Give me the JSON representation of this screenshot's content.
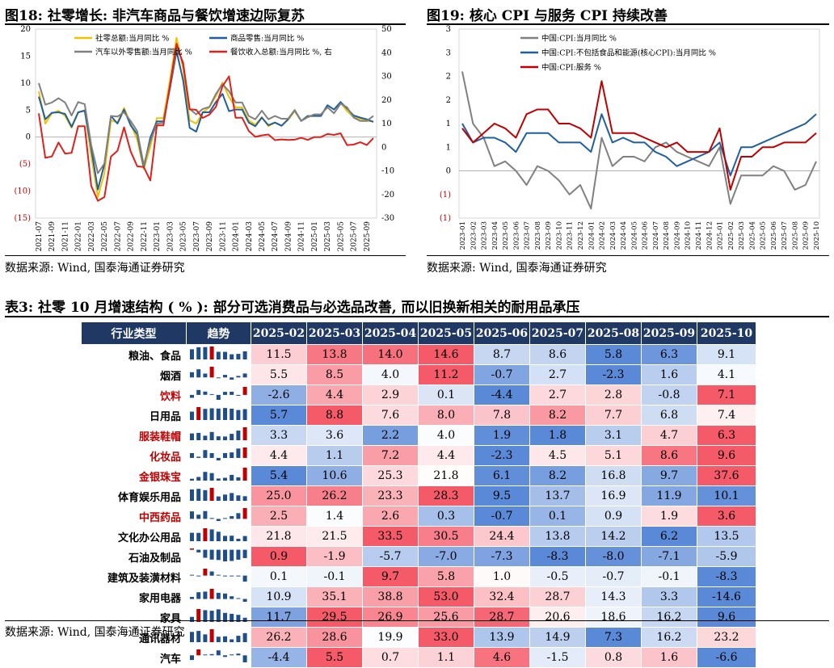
{
  "fig18": {
    "title": "图18: 社零增长: 非汽车商品与餐饮增速边际复苏",
    "source": "数据来源: Wind, 国泰海通证券研究"
  },
  "fig19": {
    "title": "图19: 核心 CPI 与服务 CPI 持续改善",
    "source": "数据来源: Wind, 国泰海通证券研究"
  },
  "table3": {
    "title": "表3: 社零 10 月增速结构 ( % ): 部分可选消费品与必选品改善, 而以旧换新相关的耐用品承压",
    "source": "数据来源: Wind, 国泰海通证券研究",
    "headers": [
      "行业类型",
      "趋势",
      "2025-02",
      "2025-03",
      "2025-04",
      "2025-05",
      "2025-06",
      "2025-07",
      "2025-08",
      "2025-09",
      "2025-10"
    ],
    "rows": [
      {
        "name": "粮油、食品",
        "red": false,
        "values": [
          "11.5",
          "13.8",
          "14.0",
          "14.6",
          "8.7",
          "8.6",
          "5.8",
          "6.3",
          "9.1"
        ]
      },
      {
        "name": "烟酒",
        "red": false,
        "values": [
          "5.5",
          "8.5",
          "4.0",
          "11.2",
          "-0.7",
          "2.7",
          "-2.3",
          "1.6",
          "4.1"
        ]
      },
      {
        "name": "饮料",
        "red": true,
        "values": [
          "-2.6",
          "4.4",
          "2.9",
          "0.1",
          "-4.4",
          "2.7",
          "2.8",
          "-0.8",
          "7.1"
        ]
      },
      {
        "name": "日用品",
        "red": false,
        "values": [
          "5.7",
          "8.8",
          "7.6",
          "8.0",
          "7.8",
          "8.2",
          "7.7",
          "6.8",
          "7.4"
        ]
      },
      {
        "name": "服装鞋帽",
        "red": true,
        "values": [
          "3.3",
          "3.6",
          "2.2",
          "4.0",
          "1.9",
          "1.8",
          "3.1",
          "4.7",
          "6.3"
        ]
      },
      {
        "name": "化妆品",
        "red": true,
        "values": [
          "4.4",
          "1.1",
          "7.2",
          "4.4",
          "-2.3",
          "4.5",
          "5.1",
          "8.6",
          "9.6"
        ]
      },
      {
        "name": "金银珠宝",
        "red": true,
        "values": [
          "5.4",
          "10.6",
          "25.3",
          "21.8",
          "6.1",
          "8.2",
          "16.8",
          "9.7",
          "37.6"
        ]
      },
      {
        "name": "体育娱乐用品",
        "red": false,
        "values": [
          "25.0",
          "26.2",
          "23.3",
          "28.3",
          "9.5",
          "13.7",
          "16.9",
          "11.9",
          "10.1"
        ]
      },
      {
        "name": "中西药品",
        "red": true,
        "values": [
          "2.5",
          "1.4",
          "2.6",
          "0.3",
          "-0.7",
          "0.1",
          "0.9",
          "1.9",
          "3.6"
        ]
      },
      {
        "name": "文化办公用品",
        "red": false,
        "values": [
          "21.8",
          "21.5",
          "33.5",
          "30.5",
          "24.4",
          "13.8",
          "14.2",
          "6.2",
          "13.5"
        ]
      },
      {
        "name": "石油及制品",
        "red": false,
        "values": [
          "0.9",
          "-1.9",
          "-5.7",
          "-7.0",
          "-7.3",
          "-8.3",
          "-8.0",
          "-7.1",
          "-5.9"
        ]
      },
      {
        "name": "建筑及装潢材料",
        "red": false,
        "values": [
          "0.1",
          "-0.1",
          "9.7",
          "5.8",
          "1.0",
          "-0.5",
          "-0.7",
          "-0.1",
          "-8.3"
        ]
      },
      {
        "name": "家用电器",
        "red": false,
        "values": [
          "10.9",
          "35.1",
          "38.8",
          "53.0",
          "32.4",
          "28.7",
          "14.3",
          "3.3",
          "-14.6"
        ]
      },
      {
        "name": "家具",
        "red": false,
        "values": [
          "11.7",
          "29.5",
          "26.9",
          "25.6",
          "28.7",
          "20.6",
          "18.6",
          "16.2",
          "9.6"
        ]
      },
      {
        "name": "通讯器材",
        "red": false,
        "values": [
          "26.2",
          "28.6",
          "19.9",
          "33.0",
          "13.9",
          "14.9",
          "7.3",
          "16.2",
          "23.2"
        ]
      },
      {
        "name": "汽车",
        "red": false,
        "values": [
          "-4.4",
          "5.5",
          "0.7",
          "1.1",
          "4.6",
          "-1.5",
          "0.8",
          "1.6",
          "-6.6"
        ]
      }
    ]
  },
  "chart_data": [
    {
      "type": "line",
      "x": [
        "2021-07",
        "2021-08",
        "2021-09",
        "2021-10",
        "2021-11",
        "2021-12",
        "2022-01",
        "2022-02",
        "2022-03",
        "2022-04",
        "2022-05",
        "2022-06",
        "2022-07",
        "2022-08",
        "2022-09",
        "2022-10",
        "2022-11",
        "2022-12",
        "2023-01",
        "2023-02",
        "2023-03",
        "2023-04",
        "2023-05",
        "2023-06",
        "2023-07",
        "2023-08",
        "2023-09",
        "2023-10",
        "2023-11",
        "2023-12",
        "2024-01",
        "2024-02",
        "2024-03",
        "2024-04",
        "2024-05",
        "2024-06",
        "2024-07",
        "2024-08",
        "2024-09",
        "2024-10",
        "2024-11",
        "2024-12",
        "2025-01",
        "2025-02",
        "2025-03",
        "2025-04",
        "2025-05",
        "2025-06",
        "2025-07",
        "2025-08",
        "2025-09",
        "2025-10"
      ],
      "xticks": [
        "2021-07",
        "2021-09",
        "2021-11",
        "2022-01",
        "2022-03",
        "2022-05",
        "2022-07",
        "2022-09",
        "2022-11",
        "2023-01",
        "2023-03",
        "2023-05",
        "2023-07",
        "2023-09",
        "2023-11",
        "2024-01",
        "2024-03",
        "2024-05",
        "2024-07",
        "2024-09",
        "2024-11",
        "2025-01",
        "2025-03",
        "2025-05",
        "2025-07",
        "2025-09"
      ],
      "ylim": [
        -15,
        20
      ],
      "yticks": [
        "20",
        "15",
        "10",
        "5",
        "0",
        "(5)",
        "(10)",
        "(15)"
      ],
      "y2lim": [
        -30,
        50
      ],
      "y2ticks": [
        "50",
        "40",
        "30",
        "20",
        "10",
        "0",
        "-10",
        "-20",
        "-30"
      ],
      "series": [
        {
          "name": "社零总额:当月同比 %",
          "axis": "left",
          "color": "#f2c200",
          "values": [
            8.5,
            2.5,
            4.4,
            4.9,
            3.9,
            1.7,
            4.5,
            5.0,
            -3.5,
            -11.1,
            -6.7,
            3.1,
            2.7,
            5.4,
            2.5,
            -0.5,
            -5.9,
            -1.8,
            3.5,
            3.5,
            10.6,
            18.4,
            12.7,
            3.1,
            2.5,
            4.6,
            5.5,
            7.6,
            10.1,
            7.4,
            5.5,
            5.5,
            3.1,
            2.3,
            3.7,
            2.0,
            2.7,
            2.1,
            3.2,
            4.8,
            3.0,
            3.7,
            4.0,
            4.0,
            5.9,
            5.1,
            6.4,
            4.8,
            3.7,
            3.4,
            3.0,
            2.9
          ]
        },
        {
          "name": "商品零售:当月同比 %",
          "axis": "left",
          "color": "#1f5fa0",
          "values": [
            7.5,
            3.3,
            4.5,
            4.6,
            4.3,
            1.9,
            4.6,
            4.9,
            -2.1,
            -9.7,
            -5.0,
            3.9,
            2.5,
            5.1,
            2.2,
            0.5,
            -5.6,
            -0.1,
            2.9,
            2.9,
            9.1,
            15.9,
            10.5,
            1.7,
            1.0,
            4.6,
            4.6,
            6.5,
            8.0,
            4.8,
            5.1,
            5.1,
            2.7,
            2.0,
            3.6,
            2.2,
            2.7,
            2.1,
            3.3,
            5.0,
            3.0,
            3.9,
            3.9,
            3.9,
            5.9,
            5.1,
            6.5,
            5.3,
            4.0,
            3.6,
            3.3,
            2.8
          ]
        },
        {
          "name": "汽车以外零售额:当月同比 %",
          "axis": "left",
          "color": "#808080",
          "values": [
            10.0,
            6.0,
            6.4,
            7.2,
            6.4,
            4.0,
            6.5,
            6.1,
            -1.5,
            -6.7,
            -4.9,
            3.9,
            3.8,
            4.6,
            3.0,
            1.1,
            -5.2,
            -0.8,
            2.5,
            2.6,
            9.6,
            16.5,
            13.9,
            5.2,
            4.2,
            5.2,
            5.6,
            8.0,
            9.8,
            8.5,
            6.4,
            6.4,
            3.9,
            3.3,
            4.9,
            3.3,
            3.9,
            3.4,
            3.4,
            5.0,
            3.0,
            3.7,
            4.2,
            4.2,
            5.5,
            4.4,
            6.2,
            5.5,
            3.6,
            3.0,
            3.0,
            3.9
          ]
        },
        {
          "name": "餐饮收入总额:当月同比 %, 右",
          "axis": "right",
          "color": "#e0201a",
          "values": [
            14.3,
            -4.5,
            -3.9,
            2.0,
            -2.7,
            -2.4,
            8.9,
            8.9,
            -16.4,
            -22.7,
            -21.1,
            -4.0,
            -1.5,
            8.4,
            -1.7,
            -8.1,
            -8.4,
            -14.1,
            9.2,
            9.2,
            26.3,
            43.8,
            35.1,
            16.1,
            15.8,
            12.4,
            13.8,
            17.1,
            25.8,
            30.0,
            12.5,
            12.5,
            6.9,
            4.4,
            5.0,
            5.4,
            3.0,
            3.3,
            3.1,
            3.2,
            4.0,
            3.1,
            4.3,
            4.3,
            5.6,
            5.2,
            5.9,
            0.9,
            1.1,
            2.1,
            0.9,
            3.8
          ]
        }
      ]
    },
    {
      "type": "line",
      "x": [
        "2023-01",
        "2023-02",
        "2023-03",
        "2023-04",
        "2023-05",
        "2023-06",
        "2023-07",
        "2023-08",
        "2023-09",
        "2023-10",
        "2023-11",
        "2023-12",
        "2024-01",
        "2024-02",
        "2024-03",
        "2024-04",
        "2024-05",
        "2024-06",
        "2024-07",
        "2024-08",
        "2024-09",
        "2024-10",
        "2024-11",
        "2024-12",
        "2025-01",
        "2025-02",
        "2025-03",
        "2025-04",
        "2025-05",
        "2025-06",
        "2025-07",
        "2025-08",
        "2025-09",
        "2025-10"
      ],
      "xticks": [
        "2023-01",
        "2023-02",
        "2023-03",
        "2023-04",
        "2023-05",
        "2023-06",
        "2023-07",
        "2023-08",
        "2023-09",
        "2023-10",
        "2023-11",
        "2023-12",
        "2024-01",
        "2024-02",
        "2024-03",
        "2024-04",
        "2024-05",
        "2024-06",
        "2024-07",
        "2024-08",
        "2024-09",
        "2024-10",
        "2024-11",
        "2024-12",
        "2025-01",
        "2025-02",
        "2025-03",
        "2025-04",
        "2025-05",
        "2025-06",
        "2025-07",
        "2025-08",
        "2025-09",
        "2025-10"
      ],
      "ylim": [
        -1,
        3
      ],
      "yticks": [
        "3",
        "3",
        "2",
        "2",
        "1",
        "1",
        "0",
        "(1)",
        "(1)"
      ],
      "series": [
        {
          "name": "中国:CPI:当月同比 %",
          "color": "#808080",
          "values": [
            2.1,
            1.0,
            0.7,
            0.1,
            0.2,
            0.0,
            -0.3,
            0.1,
            0.0,
            -0.2,
            -0.5,
            -0.3,
            -0.8,
            0.7,
            0.1,
            0.3,
            0.3,
            0.2,
            0.5,
            0.6,
            0.4,
            0.3,
            0.2,
            0.1,
            0.5,
            -0.7,
            -0.1,
            -0.1,
            -0.1,
            0.1,
            0.0,
            -0.4,
            -0.3,
            0.2
          ]
        },
        {
          "name": "中国:CPI:不包括食品和能源(核心CPI):当月同比 %",
          "color": "#1f5fa0",
          "values": [
            1.0,
            0.6,
            0.7,
            0.7,
            0.6,
            0.4,
            0.8,
            0.8,
            0.8,
            0.6,
            0.6,
            0.6,
            0.4,
            1.2,
            0.6,
            0.7,
            0.6,
            0.6,
            0.4,
            0.3,
            0.1,
            0.2,
            0.3,
            0.4,
            0.6,
            -0.1,
            0.5,
            0.5,
            0.6,
            0.7,
            0.8,
            0.9,
            1.0,
            1.2
          ]
        },
        {
          "name": "中国:CPI:服务 %",
          "color": "#c00000",
          "values": [
            0.9,
            0.6,
            0.8,
            1.0,
            0.9,
            0.7,
            1.2,
            1.3,
            1.3,
            1.0,
            1.0,
            0.9,
            0.7,
            1.9,
            0.8,
            0.8,
            0.8,
            0.7,
            0.6,
            0.5,
            0.6,
            0.4,
            0.4,
            0.4,
            0.9,
            -0.4,
            0.3,
            0.3,
            0.5,
            0.5,
            0.6,
            0.6,
            0.6,
            0.8
          ]
        }
      ]
    }
  ]
}
